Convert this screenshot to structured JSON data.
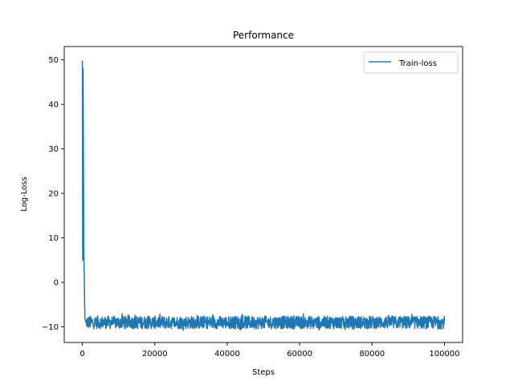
{
  "chart_data": {
    "type": "line",
    "title": "Performance",
    "xlabel": "Steps",
    "ylabel": "Log-Loss",
    "xlim": [
      -5000,
      105000
    ],
    "ylim": [
      -13.5,
      53
    ],
    "xticks": [
      0,
      20000,
      40000,
      60000,
      80000,
      100000
    ],
    "xtick_labels": [
      "0",
      "20000",
      "40000",
      "60000",
      "80000",
      "100000"
    ],
    "yticks": [
      -10,
      0,
      10,
      20,
      30,
      40,
      50
    ],
    "ytick_labels": [
      "−10",
      "0",
      "10",
      "20",
      "30",
      "40",
      "50"
    ],
    "grid": false,
    "legend": {
      "position": "top-right"
    },
    "series": [
      {
        "name": "Train-loss",
        "color": "#1f77b4",
        "initial_spike": {
          "x": [
            0,
            100,
            200,
            400,
            700,
            1000
          ],
          "y": [
            49.8,
            5.0,
            48.0,
            8.0,
            -8.0,
            -9.0
          ]
        },
        "band": {
          "x": [
            1000,
            100000
          ],
          "y_min": -10.8,
          "y_max": -7.0,
          "center": -9.0
        }
      }
    ]
  }
}
